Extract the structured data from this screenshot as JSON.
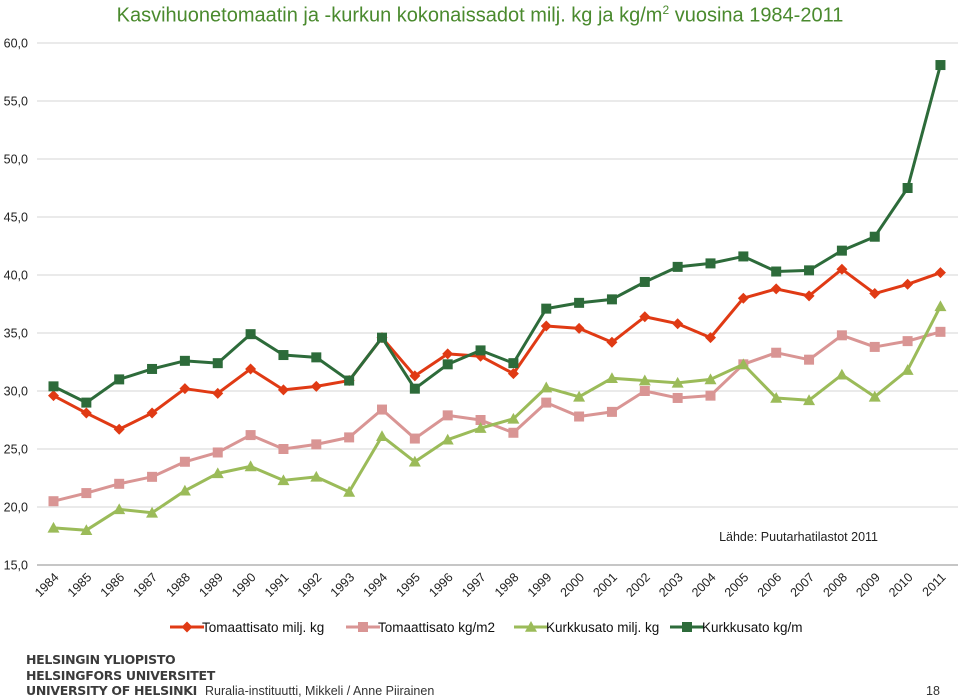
{
  "chart_data": {
    "type": "line",
    "title_main": "Kasvihuonetomaatin ja -kurkun kokonaissadot milj. kg ja kg/m",
    "title_sup": "2",
    "title_tail": " vuosina 1984-2011",
    "xlabel": "",
    "ylabel": "",
    "ylim": [
      15,
      60
    ],
    "y_ticks": [
      "15,0",
      "20,0",
      "25,0",
      "30,0",
      "35,0",
      "40,0",
      "45,0",
      "50,0",
      "55,0",
      "60,0"
    ],
    "grid": "horizontal",
    "legend_position": "bottom",
    "categories": [
      "1984",
      "1985",
      "1986",
      "1987",
      "1988",
      "1989",
      "1990",
      "1991",
      "1992",
      "1993",
      "1994",
      "1995",
      "1996",
      "1997",
      "1998",
      "1999",
      "2000",
      "2001",
      "2002",
      "2003",
      "2004",
      "2005",
      "2006",
      "2007",
      "2008",
      "2009",
      "2010",
      "2011"
    ],
    "series": [
      {
        "name": "Tomaattisato milj. kg",
        "color": "#e03a14",
        "marker": "diamond",
        "values": [
          29.6,
          28.1,
          26.7,
          28.1,
          30.2,
          29.8,
          31.9,
          30.1,
          30.4,
          30.9,
          34.6,
          31.3,
          33.2,
          33.0,
          31.5,
          35.6,
          35.4,
          34.2,
          36.4,
          35.8,
          34.6,
          38.0,
          38.8,
          38.2,
          40.5,
          38.4,
          39.2,
          40.2
        ]
      },
      {
        "name": "Tomaattisato kg/m2",
        "color": "#d99594",
        "marker": "square",
        "values": [
          20.5,
          21.2,
          22.0,
          22.6,
          23.9,
          24.7,
          26.2,
          25.0,
          25.4,
          26.0,
          28.4,
          25.9,
          27.9,
          27.5,
          26.4,
          29.0,
          27.8,
          28.2,
          30.0,
          29.4,
          29.6,
          32.3,
          33.3,
          32.7,
          34.8,
          33.8,
          34.3,
          35.1
        ]
      },
      {
        "name": "Kurkkusato milj. kg",
        "color": "#9bbb59",
        "marker": "triangle",
        "values": [
          18.2,
          18.0,
          19.8,
          19.5,
          21.4,
          22.9,
          23.5,
          22.3,
          22.6,
          21.3,
          26.1,
          23.9,
          25.8,
          26.8,
          27.6,
          30.3,
          29.5,
          31.1,
          30.9,
          30.7,
          31.0,
          32.3,
          29.4,
          29.2,
          31.4,
          29.5,
          31.8,
          37.3
        ]
      },
      {
        "name": "Kurkkusato kg/m",
        "color": "#2d6b3a",
        "marker": "square",
        "values": [
          30.4,
          29.0,
          31.0,
          31.9,
          32.6,
          32.4,
          34.9,
          33.1,
          32.9,
          30.9,
          34.6,
          30.2,
          32.3,
          33.5,
          32.4,
          37.1,
          37.6,
          37.9,
          39.4,
          40.7,
          41.0,
          41.6,
          40.3,
          40.4,
          42.1,
          43.3,
          47.5,
          58.1
        ]
      }
    ],
    "annotation": "Lähde: Puutarhatilastot 2011"
  },
  "footer": {
    "logo_lines": [
      "HELSINGIN YLIOPISTO",
      "HELSINGFORS UNIVERSITET",
      "UNIVERSITY OF HELSINKI"
    ],
    "credit": "Ruralia-instituutti, Mikkeli / Anne Piirainen",
    "page_number": "18"
  }
}
